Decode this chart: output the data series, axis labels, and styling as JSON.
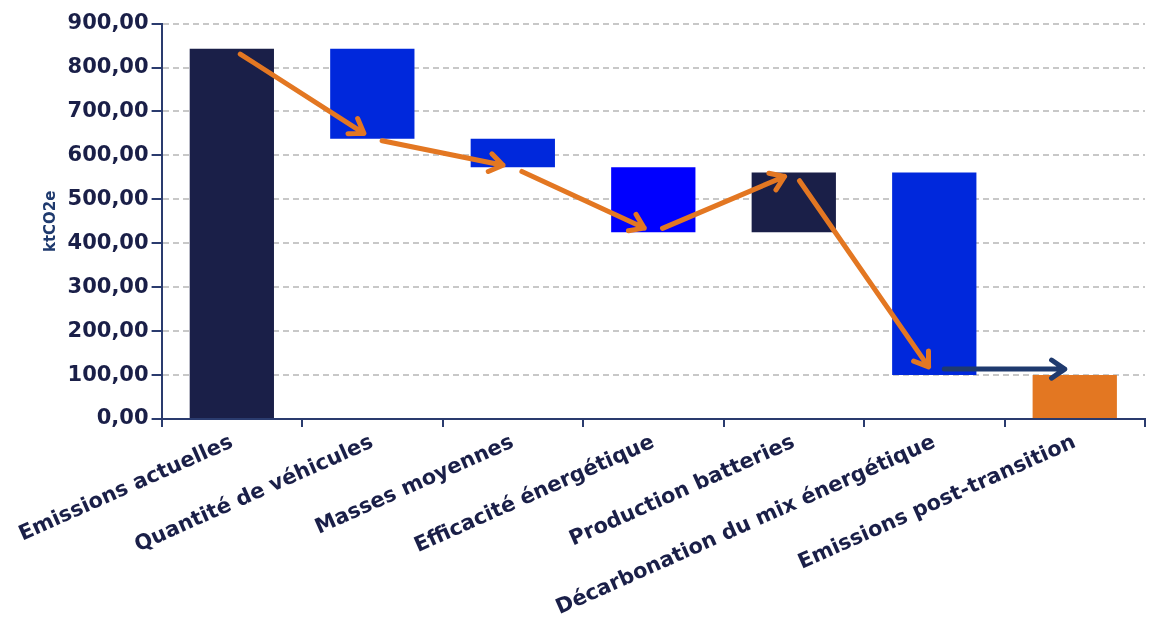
{
  "chart_data": {
    "type": "bar",
    "ylabel": "ktCO2e",
    "categories": [
      "Emissions actuelles",
      "Quantité de véhicules",
      "Masses moyennes",
      "Efficacité énergétique",
      "Production batteries",
      "Décarbonation du mix énergétique",
      "Emissions post-transition"
    ],
    "values": [
      843,
      205,
      65,
      148,
      136,
      461,
      100
    ],
    "base": [
      0,
      638,
      573,
      425,
      425,
      100,
      0
    ],
    "colors": [
      "#1a1f48",
      "#0028dc",
      "#0028dc",
      "#0000ff",
      "#1a1f48",
      "#0028dc",
      "#e37722"
    ],
    "ylim": [
      0,
      900
    ],
    "yticks": [
      {
        "value": 0,
        "label": "0,00"
      },
      {
        "value": 100,
        "label": "100,00"
      },
      {
        "value": 200,
        "label": "200,00"
      },
      {
        "value": 300,
        "label": "300,00"
      },
      {
        "value": 400,
        "label": "400,00"
      },
      {
        "value": 500,
        "label": "500,00"
      },
      {
        "value": 600,
        "label": "600,00"
      },
      {
        "value": 700,
        "label": "700,00"
      },
      {
        "value": 800,
        "label": "800,00"
      },
      {
        "value": 900,
        "label": "900,00"
      }
    ],
    "grid": "y",
    "legend": false
  }
}
